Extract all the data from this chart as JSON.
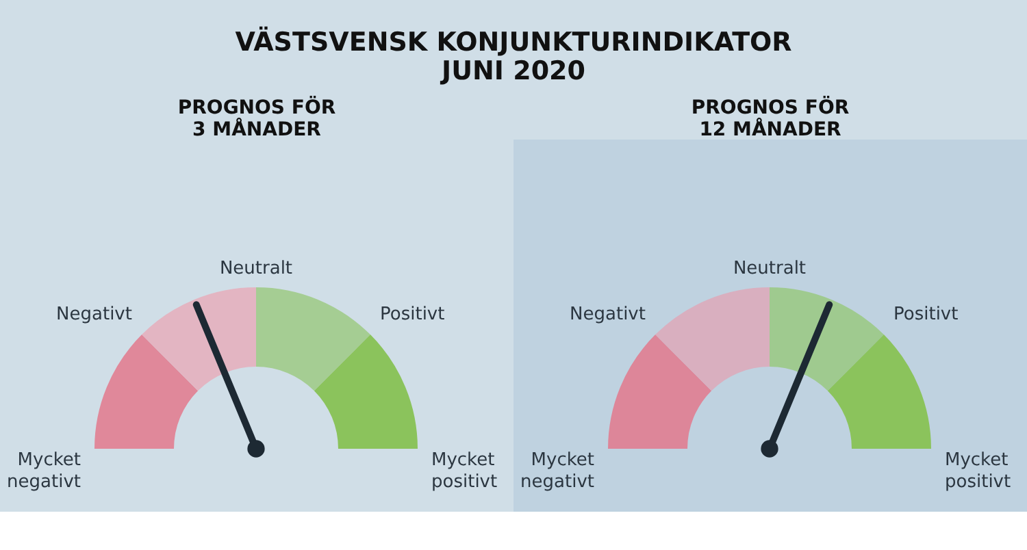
{
  "chart_data": [
    {
      "type": "donut",
      "title": "VÄSTSVENSK KONJUNKTURINDIKATOR\nJUNI 2020",
      "subtitle": "PROGNOS FÖR\n3 MÅNADER",
      "categories": [
        "Mycket\nnegativt",
        "Negativt",
        "Positivt",
        "Mycket\npositivt"
      ],
      "values": [
        25,
        25,
        25,
        25
      ],
      "colors": [
        "#e0889a",
        "#e3b5c2",
        "#a5cd93",
        "#8bc35c"
      ],
      "annotations": [
        "Neutralt"
      ],
      "needle": "Negativt"
    },
    {
      "type": "donut",
      "subtitle": "PROGNOS FÖR\n12 MÅNADER",
      "categories": [
        "Mycket\nnegativt",
        "Negativt",
        "Positivt",
        "Mycket\npositivt"
      ],
      "values": [
        25,
        25,
        25,
        25
      ],
      "colors": [
        "#dd8699",
        "#d9afbf",
        "#9fca8f",
        "#8bc35c"
      ],
      "annotations": [
        "Neutralt"
      ],
      "needle": "Positivt"
    }
  ]
}
